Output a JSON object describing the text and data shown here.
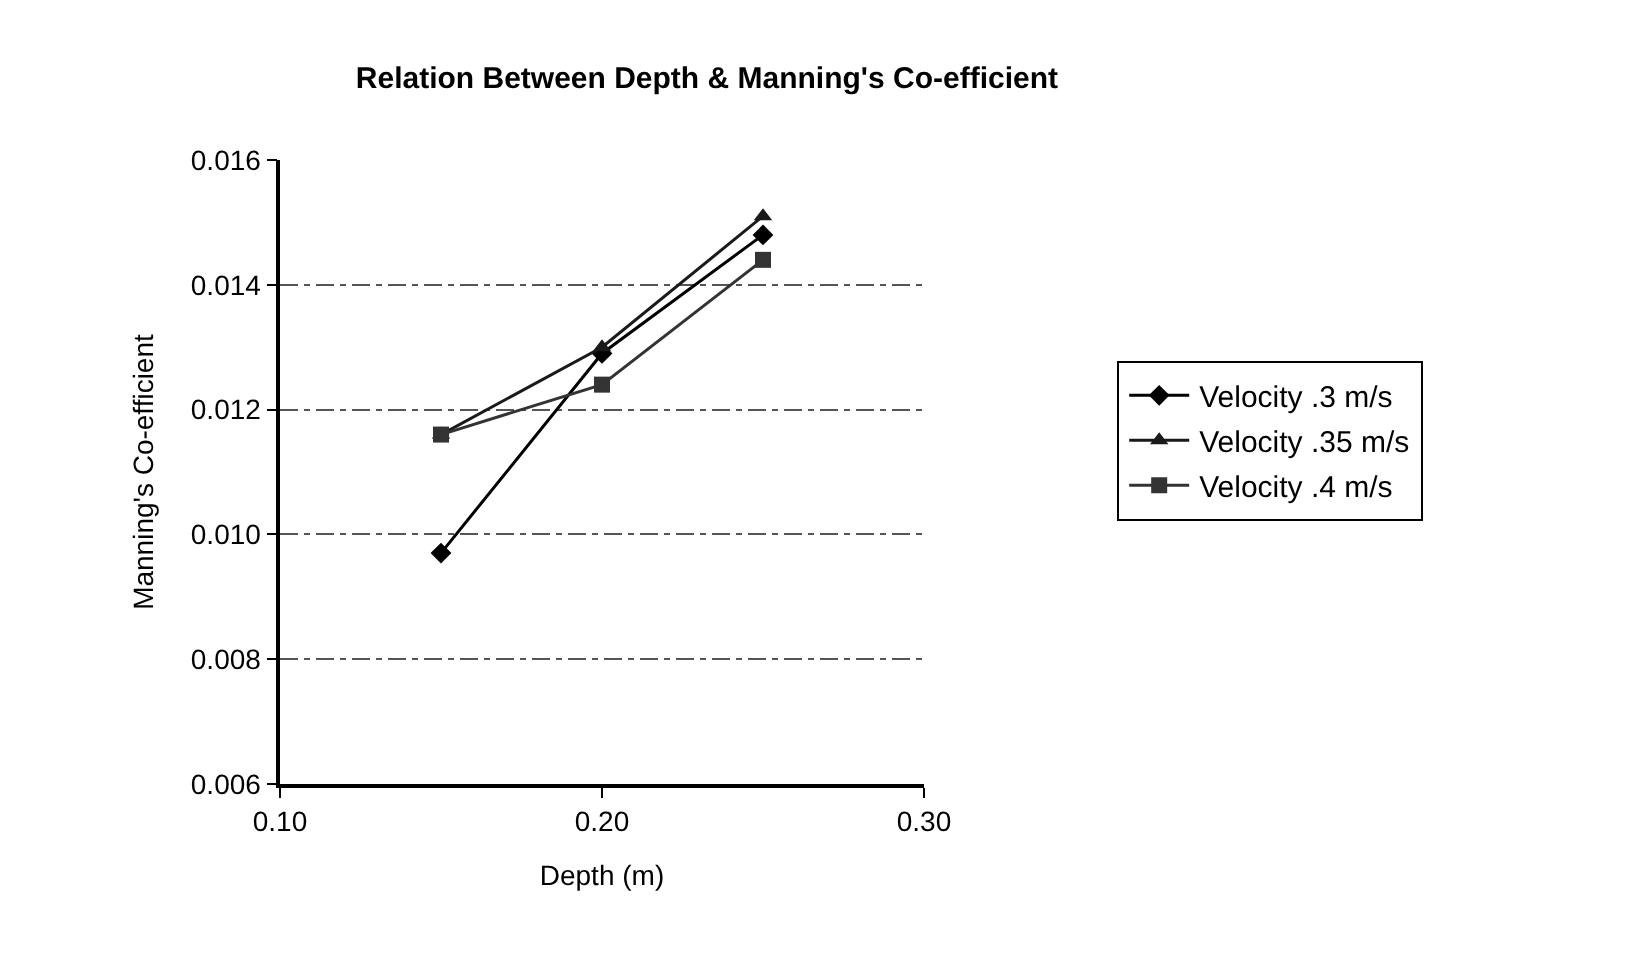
{
  "chart_data": {
    "type": "line",
    "title": "Relation Between Depth & Manning's Co-efficient",
    "xlabel": "Depth (m)",
    "ylabel": "Manning's Co-efficient",
    "x": [
      0.15,
      0.2,
      0.25
    ],
    "series": [
      {
        "name": "Velocity .3 m/s",
        "color": "#000000",
        "marker": "diamond",
        "values": [
          0.0097,
          0.0129,
          0.0148
        ]
      },
      {
        "name": "Velocity .35 m/s",
        "color": "#1a1a1a",
        "marker": "triangle",
        "values": [
          0.0116,
          0.013,
          0.0151
        ]
      },
      {
        "name": "Velocity .4 m/s",
        "color": "#333333",
        "marker": "square",
        "values": [
          0.0116,
          0.0124,
          0.0144
        ]
      }
    ],
    "xlim": [
      0.1,
      0.3
    ],
    "xticks": [
      {
        "value": 0.1,
        "label": "0.10"
      },
      {
        "value": 0.2,
        "label": "0.20"
      },
      {
        "value": 0.3,
        "label": "0.30"
      }
    ],
    "ylim": [
      0.006,
      0.016
    ],
    "yticks": [
      0.006,
      0.008,
      {
        "value": 0.01,
        "label": "0.010"
      },
      0.012,
      0.014,
      0.016
    ],
    "grid": "y",
    "legend": "right",
    "line_style": "solid"
  }
}
